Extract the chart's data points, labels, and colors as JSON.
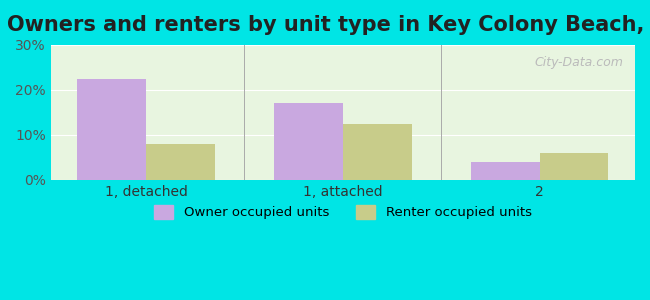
{
  "title": "Owners and renters by unit type in Key Colony Beach, FL",
  "categories": [
    "1, detached",
    "1, attached",
    "2"
  ],
  "owner_values": [
    22.5,
    17.0,
    4.0
  ],
  "renter_values": [
    8.0,
    12.5,
    6.0
  ],
  "owner_color": "#c9a8e0",
  "renter_color": "#c8cc8a",
  "ylim": [
    0,
    30
  ],
  "yticks": [
    0,
    10,
    20,
    30
  ],
  "ytick_labels": [
    "0%",
    "10%",
    "20%",
    "30%"
  ],
  "background_color": "#e8f5e0",
  "outer_background": "#00e5e5",
  "bar_width": 0.35,
  "legend_owner": "Owner occupied units",
  "legend_renter": "Renter occupied units",
  "title_fontsize": 15,
  "watermark": "City-Data.com"
}
